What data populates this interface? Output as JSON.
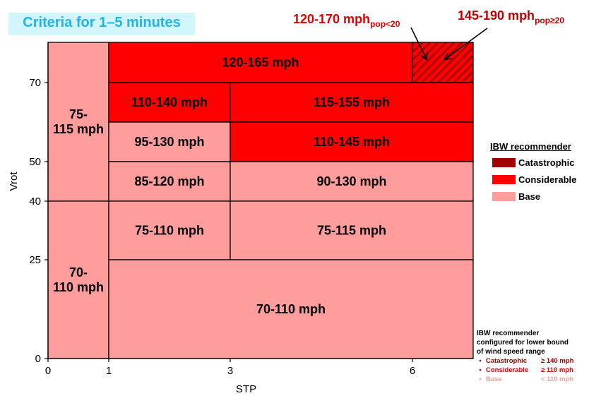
{
  "title": "Criteria for 1–5 minutes",
  "chart_data": {
    "type": "table",
    "xlabel": "STP",
    "ylabel": "Vrot",
    "x_ticks": [
      0,
      1,
      3,
      6
    ],
    "y_ticks": [
      0,
      25,
      40,
      50,
      70
    ],
    "xlim": [
      0,
      7
    ],
    "ylim": [
      0,
      80
    ],
    "cells": [
      {
        "label": "75-\n115 mph",
        "x": [
          0,
          1
        ],
        "y": [
          40,
          80
        ],
        "category": "Base"
      },
      {
        "label": "70-\n110 mph",
        "x": [
          0,
          1
        ],
        "y": [
          0,
          40
        ],
        "category": "Base"
      },
      {
        "label": "120-165 mph",
        "x": [
          1,
          6
        ],
        "y": [
          70,
          80
        ],
        "category": "Considerable"
      },
      {
        "label": "",
        "x": [
          6,
          7
        ],
        "y": [
          70,
          80
        ],
        "category": "Considerable",
        "hatched": true
      },
      {
        "label": "110-140 mph",
        "x": [
          1,
          3
        ],
        "y": [
          60,
          70
        ],
        "category": "Considerable"
      },
      {
        "label": "115-155 mph",
        "x": [
          3,
          7
        ],
        "y": [
          60,
          70
        ],
        "category": "Considerable"
      },
      {
        "label": "95-130 mph",
        "x": [
          1,
          3
        ],
        "y": [
          50,
          60
        ],
        "category": "Base"
      },
      {
        "label": "110-145 mph",
        "x": [
          3,
          7
        ],
        "y": [
          50,
          60
        ],
        "category": "Considerable"
      },
      {
        "label": "85-120 mph",
        "x": [
          1,
          3
        ],
        "y": [
          40,
          50
        ],
        "category": "Base"
      },
      {
        "label": "90-130 mph",
        "x": [
          3,
          7
        ],
        "y": [
          40,
          50
        ],
        "category": "Base"
      },
      {
        "label": "75-110 mph",
        "x": [
          1,
          3
        ],
        "y": [
          25,
          40
        ],
        "category": "Base"
      },
      {
        "label": "75-115 mph",
        "x": [
          3,
          7
        ],
        "y": [
          25,
          40
        ],
        "category": "Base"
      },
      {
        "label": "70-110 mph",
        "x": [
          1,
          7
        ],
        "y": [
          0,
          25
        ],
        "category": "Base"
      }
    ],
    "annotations": [
      {
        "text": "120-170 mph",
        "subscript": "pop<20",
        "color": "#e00000"
      },
      {
        "text": "145-190 mph",
        "subscript": "pop≥20",
        "color": "#c00000"
      }
    ]
  },
  "legend": {
    "title": "IBW recommender",
    "items": [
      {
        "label": "Catastrophic",
        "color": "#a00000"
      },
      {
        "label": "Considerable",
        "color": "#ff0000"
      },
      {
        "label": "Base",
        "color": "#ff9c9c"
      }
    ]
  },
  "note": {
    "lines": [
      "IBW recommender",
      "configured for lower bound",
      "of wind speed range"
    ],
    "items": [
      {
        "bullet": "•",
        "name": "Catastrophic",
        "threshold": "≥ 140 mph",
        "color": "#a00000"
      },
      {
        "bullet": "•",
        "name": "Considerable",
        "threshold": "≥ 110 mph",
        "color": "#e00000"
      },
      {
        "bullet": "•",
        "name": "Base",
        "threshold": "< 110 mph",
        "color": "#ff9c9c"
      }
    ]
  },
  "colors": {
    "Catastrophic": "#a00000",
    "Considerable": "#ff0000",
    "Base": "#ff9c9c"
  }
}
